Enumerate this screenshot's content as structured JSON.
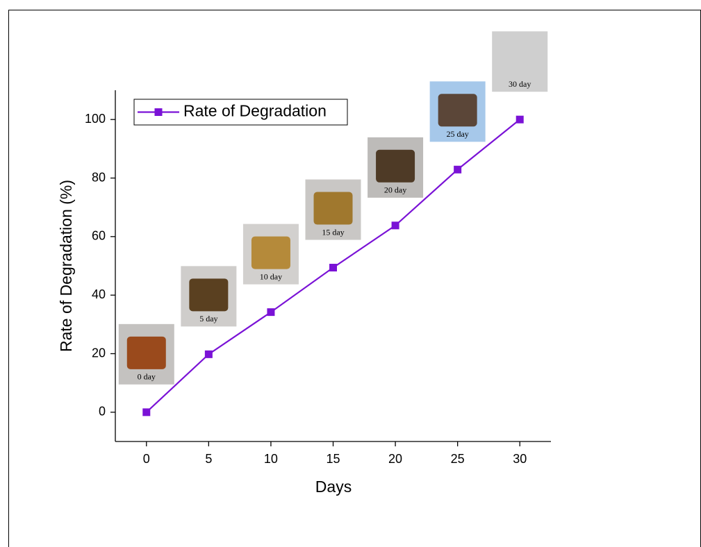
{
  "chart_data": {
    "type": "line",
    "x_label": "Days",
    "y_label": "Rate of Degradation (%)",
    "x": [
      0,
      5,
      10,
      15,
      20,
      25,
      30
    ],
    "series": [
      {
        "name": "Rate of Degradation",
        "color": "#7a12d6",
        "values": [
          0,
          19.8,
          34.2,
          49.4,
          63.8,
          82.9,
          100
        ]
      }
    ],
    "annotations": [
      "0 day",
      "5 day",
      "10 day",
      "15 day",
      "20 day",
      "25 day",
      "30 day"
    ],
    "xlim": [
      -2.5,
      32.5
    ],
    "xticks": [
      0,
      5,
      10,
      15,
      20,
      25,
      30
    ],
    "ylim": [
      -10,
      110
    ],
    "yticks": [
      0,
      20,
      40,
      60,
      80,
      100
    ],
    "legend": "top-left",
    "grid": false
  }
}
